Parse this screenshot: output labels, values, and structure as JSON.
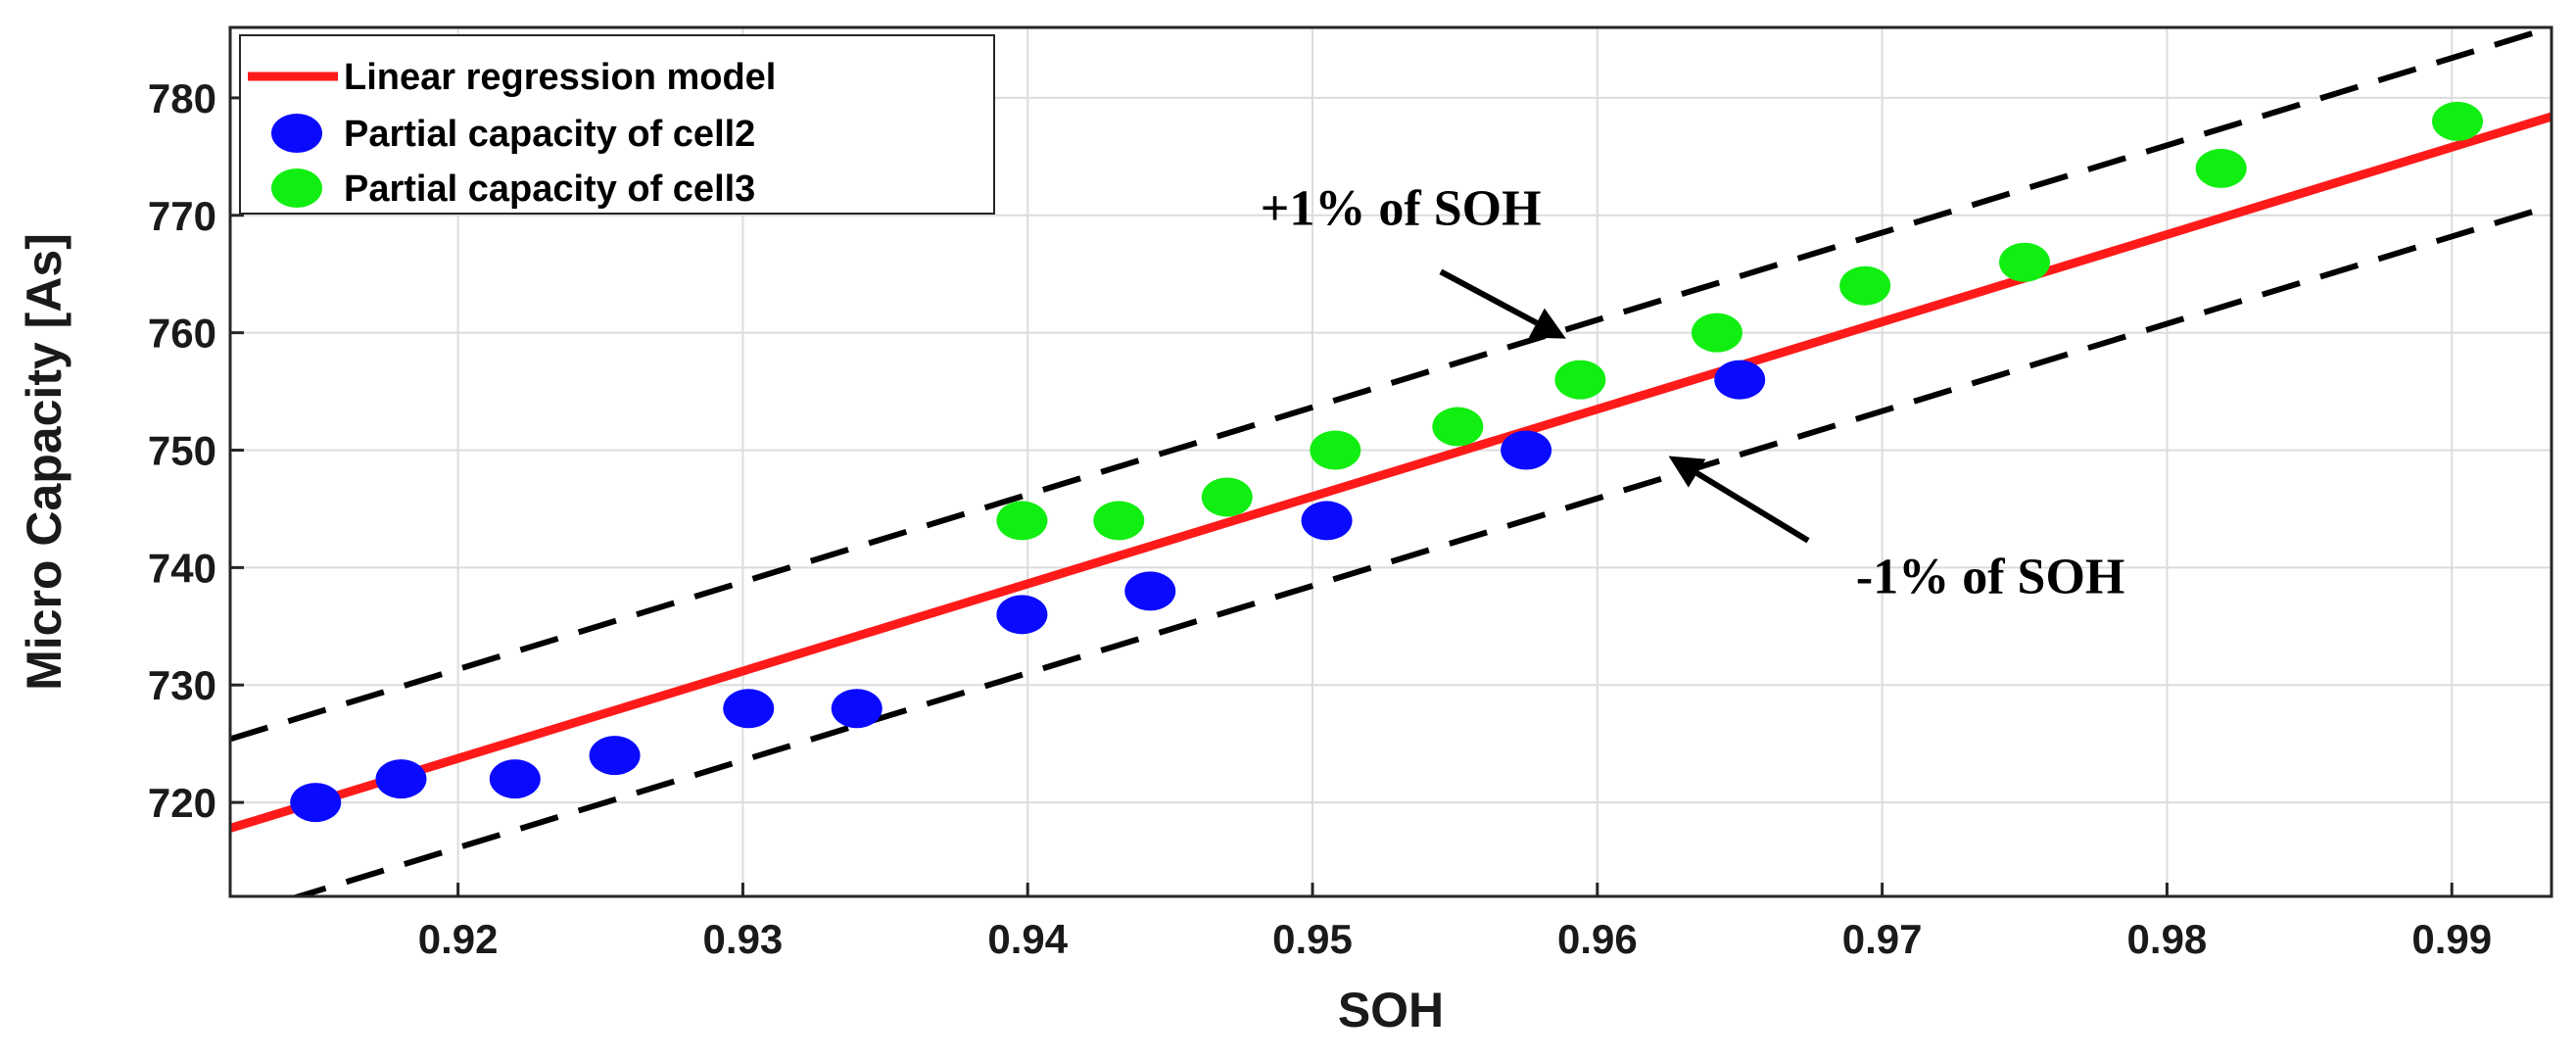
{
  "chart_data": {
    "type": "scatter",
    "xlabel": "SOH",
    "ylabel": "Micro Capacity [As]",
    "xlim": [
      0.912,
      0.9935
    ],
    "ylim": [
      712,
      786
    ],
    "xticks": [
      0.92,
      0.93,
      0.94,
      0.95,
      0.96,
      0.97,
      0.98,
      0.99
    ],
    "yticks": [
      720,
      730,
      740,
      750,
      760,
      770,
      780
    ],
    "grid": true,
    "legend_position": "top-left",
    "series": [
      {
        "name": "Linear regression model",
        "kind": "line",
        "style": "solid",
        "color": "#ff1a1a",
        "x": [
          0.912,
          0.9935
        ],
        "y": [
          717.8,
          778.4
        ]
      },
      {
        "name": "+1% of SOH",
        "kind": "line",
        "style": "dashed",
        "color": "#000000",
        "x": [
          0.912,
          0.9935
        ],
        "y": [
          725.4,
          786.0
        ]
      },
      {
        "name": "-1% of SOH",
        "kind": "line",
        "style": "dashed",
        "color": "#000000",
        "x": [
          0.912,
          0.9935
        ],
        "y": [
          710.2,
          770.8
        ]
      },
      {
        "name": "Partial capacity of cell2",
        "kind": "scatter",
        "color": "#0a0aff",
        "x": [
          0.915,
          0.918,
          0.922,
          0.9255,
          0.9302,
          0.934,
          0.9398,
          0.9443,
          0.9505,
          0.9575,
          0.965
        ],
        "y": [
          720,
          722,
          722,
          724,
          728,
          728,
          736,
          738,
          744,
          750,
          756
        ]
      },
      {
        "name": "Partial capacity of cell3",
        "kind": "scatter",
        "color": "#11ee11",
        "x": [
          0.9398,
          0.9432,
          0.947,
          0.9508,
          0.9551,
          0.9594,
          0.9642,
          0.9694,
          0.975,
          0.9819,
          0.9902
        ],
        "y": [
          744,
          744,
          746,
          750,
          752,
          756,
          760,
          764,
          766,
          774,
          778
        ]
      }
    ],
    "legend": [
      "Linear regression model",
      "Partial capacity of cell2",
      "Partial capacity of cell3"
    ],
    "annotations": [
      {
        "text": "+1% of SOH",
        "arrow_to_x": 0.9589,
        "arrow_to_y": 759.5
      },
      {
        "text": "-1% of SOH",
        "arrow_to_x": 0.9625,
        "arrow_to_y": 749.5
      }
    ]
  }
}
